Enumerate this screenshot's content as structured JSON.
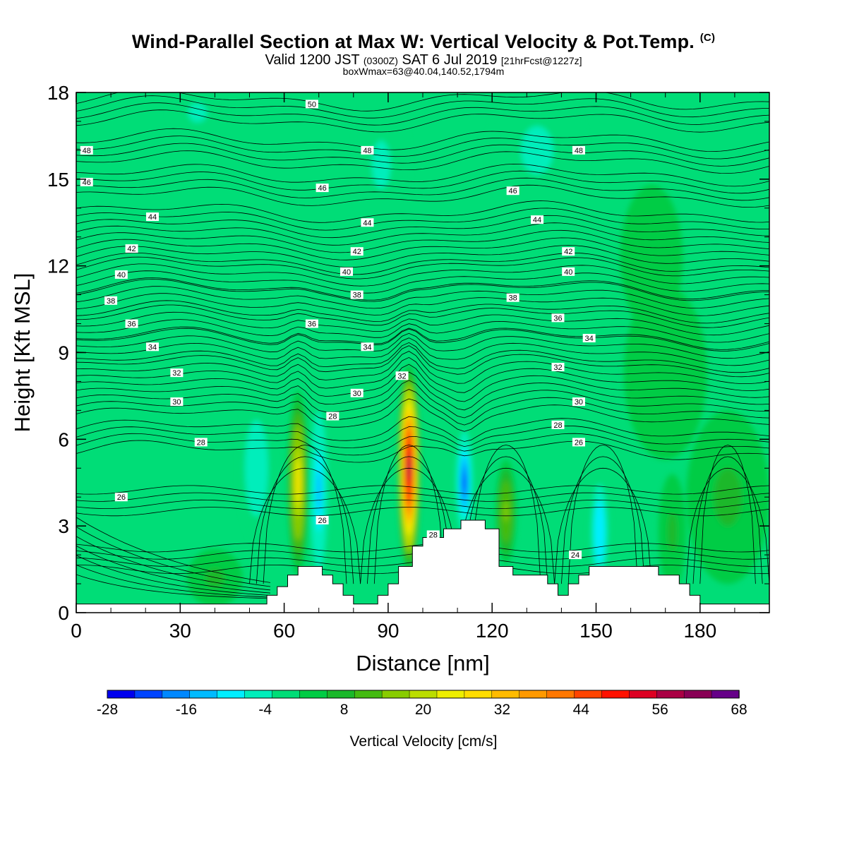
{
  "title": "Wind-Parallel Section at Max W: Vertical Velocity & Pot.Temp.",
  "copyright": "(C)",
  "subtitle": {
    "prefix": "Valid 1200 JST",
    "utc": "(0300Z)",
    "date": "SAT 6 Jul 2019",
    "fcst": "[21hrFcst@1227z]"
  },
  "subsubtitle": "boxWmax=63@40.04,140.52,1794m",
  "chart_data": {
    "type": "contour-section",
    "xlabel": "Distance [nm]",
    "ylabel": "Height [Kft MSL]",
    "xlim": [
      0,
      200
    ],
    "ylim": [
      0,
      18
    ],
    "xticks": [
      0,
      30,
      60,
      90,
      120,
      150,
      180
    ],
    "yticks": [
      0,
      3,
      6,
      9,
      12,
      15,
      18
    ],
    "colorbar": {
      "title": "Vertical Velocity [cm/s]",
      "labels": [
        -28,
        -16,
        -4,
        8,
        20,
        32,
        44,
        56,
        68
      ],
      "colors": [
        "#0000ee",
        "#0044ff",
        "#0088ff",
        "#00bbff",
        "#00eeff",
        "#00eebb",
        "#00dd77",
        "#00cc44",
        "#1ab82a",
        "#44bb11",
        "#88cc00",
        "#bbdd00",
        "#eeee00",
        "#ffdd00",
        "#ffbb00",
        "#ff9900",
        "#ff7700",
        "#ff4400",
        "#ff1100",
        "#dd0022",
        "#aa0044",
        "#880055",
        "#660088"
      ]
    },
    "terrain": [
      [
        0,
        0.3
      ],
      [
        55,
        0.3
      ],
      [
        55,
        0.6
      ],
      [
        58,
        0.6
      ],
      [
        58,
        0.9
      ],
      [
        61,
        0.9
      ],
      [
        61,
        1.3
      ],
      [
        64,
        1.3
      ],
      [
        64,
        1.6
      ],
      [
        71,
        1.6
      ],
      [
        71,
        1.3
      ],
      [
        74,
        1.3
      ],
      [
        74,
        1.0
      ],
      [
        77,
        1.0
      ],
      [
        77,
        0.6
      ],
      [
        80,
        0.6
      ],
      [
        80,
        0.3
      ],
      [
        87,
        0.3
      ],
      [
        87,
        0.6
      ],
      [
        90,
        0.6
      ],
      [
        90,
        1.0
      ],
      [
        93,
        1.0
      ],
      [
        93,
        1.6
      ],
      [
        97,
        1.6
      ],
      [
        97,
        2.3
      ],
      [
        100,
        2.3
      ],
      [
        100,
        2.6
      ],
      [
        106,
        2.6
      ],
      [
        106,
        2.9
      ],
      [
        111,
        2.9
      ],
      [
        111,
        3.2
      ],
      [
        118,
        3.2
      ],
      [
        118,
        2.9
      ],
      [
        122,
        2.9
      ],
      [
        122,
        1.6
      ],
      [
        126,
        1.6
      ],
      [
        126,
        1.3
      ],
      [
        136,
        1.3
      ],
      [
        136,
        1.0
      ],
      [
        139,
        1.0
      ],
      [
        139,
        0.6
      ],
      [
        142,
        0.6
      ],
      [
        142,
        1.0
      ],
      [
        145,
        1.0
      ],
      [
        145,
        1.3
      ],
      [
        148,
        1.3
      ],
      [
        148,
        1.6
      ],
      [
        168,
        1.6
      ],
      [
        168,
        1.3
      ],
      [
        174,
        1.3
      ],
      [
        174,
        1.0
      ],
      [
        177,
        1.0
      ],
      [
        177,
        0.6
      ],
      [
        180,
        0.6
      ],
      [
        180,
        0.3
      ],
      [
        200,
        0.3
      ]
    ],
    "theta_contours": [
      {
        "value": 50,
        "height": 17.5
      },
      {
        "value": 48,
        "height": 16.1
      },
      {
        "value": 46,
        "height": 14.9
      },
      {
        "value": 44,
        "height": 13.6
      },
      {
        "value": 42,
        "height": 12.6
      },
      {
        "value": 40,
        "height": 11.7
      },
      {
        "value": 38,
        "height": 10.9
      },
      {
        "value": 36,
        "height": 10.0
      },
      {
        "value": 34,
        "height": 9.2
      },
      {
        "value": 32,
        "height": 8.3
      },
      {
        "value": 30,
        "height": 7.3
      },
      {
        "value": 28,
        "height": 6.1
      },
      {
        "value": 26,
        "height": 4.0
      },
      {
        "value": 24,
        "height": 2.0
      }
    ],
    "contour_labels": [
      {
        "text": "50",
        "x": 68,
        "y": 17.6
      },
      {
        "text": "48",
        "x": 3,
        "y": 16.0
      },
      {
        "text": "48",
        "x": 84,
        "y": 16.0
      },
      {
        "text": "48",
        "x": 145,
        "y": 16.0
      },
      {
        "text": "46",
        "x": 3,
        "y": 14.9
      },
      {
        "text": "46",
        "x": 71,
        "y": 14.7
      },
      {
        "text": "46",
        "x": 126,
        "y": 14.6
      },
      {
        "text": "44",
        "x": 22,
        "y": 13.7
      },
      {
        "text": "44",
        "x": 84,
        "y": 13.5
      },
      {
        "text": "44",
        "x": 133,
        "y": 13.6
      },
      {
        "text": "42",
        "x": 16,
        "y": 12.6
      },
      {
        "text": "42",
        "x": 81,
        "y": 12.5
      },
      {
        "text": "42",
        "x": 142,
        "y": 12.5
      },
      {
        "text": "40",
        "x": 13,
        "y": 11.7
      },
      {
        "text": "40",
        "x": 78,
        "y": 11.8
      },
      {
        "text": "40",
        "x": 142,
        "y": 11.8
      },
      {
        "text": "38",
        "x": 10,
        "y": 10.8
      },
      {
        "text": "38",
        "x": 81,
        "y": 11.0
      },
      {
        "text": "38",
        "x": 126,
        "y": 10.9
      },
      {
        "text": "36",
        "x": 16,
        "y": 10.0
      },
      {
        "text": "36",
        "x": 68,
        "y": 10.0
      },
      {
        "text": "36",
        "x": 139,
        "y": 10.2
      },
      {
        "text": "34",
        "x": 22,
        "y": 9.2
      },
      {
        "text": "34",
        "x": 84,
        "y": 9.2
      },
      {
        "text": "34",
        "x": 148,
        "y": 9.5
      },
      {
        "text": "32",
        "x": 29,
        "y": 8.3
      },
      {
        "text": "32",
        "x": 94,
        "y": 8.2
      },
      {
        "text": "32",
        "x": 139,
        "y": 8.5
      },
      {
        "text": "30",
        "x": 29,
        "y": 7.3
      },
      {
        "text": "30",
        "x": 81,
        "y": 7.6
      },
      {
        "text": "30",
        "x": 145,
        "y": 7.3
      },
      {
        "text": "28",
        "x": 36,
        "y": 5.9
      },
      {
        "text": "28",
        "x": 74,
        "y": 6.8
      },
      {
        "text": "28",
        "x": 139,
        "y": 6.5
      },
      {
        "text": "26",
        "x": 145,
        "y": 5.9
      },
      {
        "text": "26",
        "x": 13,
        "y": 4.0
      },
      {
        "text": "26",
        "x": 71,
        "y": 3.2
      },
      {
        "text": "28",
        "x": 103,
        "y": 2.7
      },
      {
        "text": "24",
        "x": 144,
        "y": 2.0
      }
    ],
    "w_features": [
      {
        "x": 64,
        "y": 4.5,
        "rx": 3.0,
        "ry": 3.2,
        "w": 28
      },
      {
        "x": 96,
        "y": 5.0,
        "rx": 3.2,
        "ry": 3.6,
        "w": 62
      },
      {
        "x": 70,
        "y": 4.2,
        "rx": 2.5,
        "ry": 2.8,
        "w": -12
      },
      {
        "x": 112,
        "y": 4.5,
        "rx": 2.5,
        "ry": 1.8,
        "w": -20
      },
      {
        "x": 124,
        "y": 3.5,
        "rx": 3.0,
        "ry": 1.8,
        "w": 16
      },
      {
        "x": 151,
        "y": 2.8,
        "rx": 3.0,
        "ry": 2.2,
        "w": -10
      },
      {
        "x": 52,
        "y": 5.0,
        "rx": 5.0,
        "ry": 2.5,
        "w": -6
      },
      {
        "x": 166,
        "y": 12.3,
        "rx": 9.0,
        "ry": 2.5,
        "w": 4
      },
      {
        "x": 88,
        "y": 15.5,
        "rx": 8.0,
        "ry": 2.5,
        "w": -4
      },
      {
        "x": 133,
        "y": 16.0,
        "rx": 14.0,
        "ry": 2.5,
        "w": -4
      },
      {
        "x": 35,
        "y": 17.3,
        "rx": 8.0,
        "ry": 1.0,
        "w": -4
      },
      {
        "x": 188,
        "y": 4.0,
        "rx": 12.0,
        "ry": 3.0,
        "w": 6
      },
      {
        "x": 172,
        "y": 2.8,
        "rx": 4.0,
        "ry": 2.0,
        "w": 8
      },
      {
        "x": 40,
        "y": 1.2,
        "rx": 8.0,
        "ry": 1.0,
        "w": 6
      },
      {
        "x": 170,
        "y": 8.3,
        "rx": 12.0,
        "ry": 3.0,
        "w": 4
      }
    ]
  }
}
